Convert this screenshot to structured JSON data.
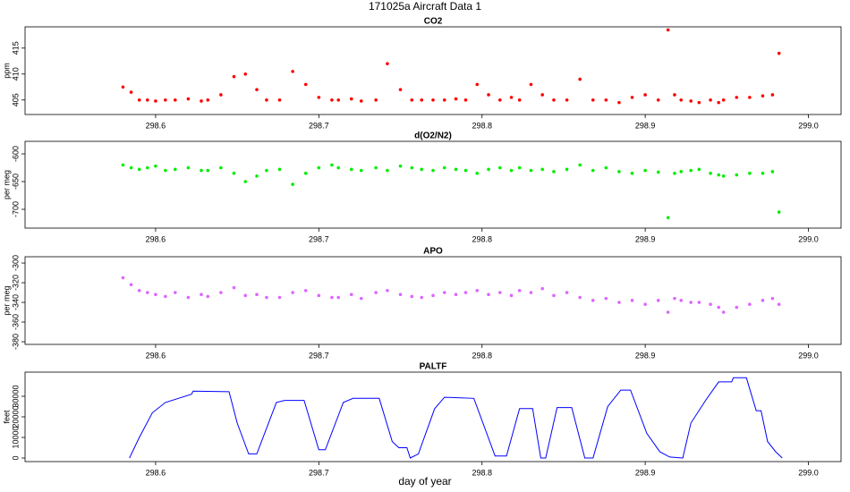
{
  "title": "171025a   Aircraft Data 1",
  "chart_data": [
    {
      "type": "scatter",
      "title": "CO2",
      "y_label": "ppm",
      "color": "#ff0000",
      "x": [
        298.58,
        298.585,
        298.59,
        298.595,
        298.6,
        298.606,
        298.612,
        298.62,
        298.628,
        298.632,
        298.64,
        298.648,
        298.655,
        298.662,
        298.668,
        298.676,
        298.684,
        298.692,
        298.7,
        298.708,
        298.712,
        298.72,
        298.726,
        298.735,
        298.742,
        298.75,
        298.757,
        298.763,
        298.77,
        298.777,
        298.784,
        298.79,
        298.797,
        298.804,
        298.811,
        298.818,
        298.823,
        298.83,
        298.837,
        298.844,
        298.852,
        298.86,
        298.868,
        298.876,
        298.884,
        298.892,
        298.9,
        298.908,
        298.914,
        298.918,
        298.922,
        298.928,
        298.933,
        298.94,
        298.945,
        298.948,
        298.956,
        298.964,
        298.972,
        298.978,
        298.982
      ],
      "values": [
        407.5,
        406.5,
        405,
        405,
        404.8,
        405,
        405,
        405.2,
        404.8,
        405,
        406,
        409.5,
        410,
        407,
        405,
        405,
        410.5,
        408,
        405.5,
        405,
        405,
        405.2,
        404.8,
        405,
        412,
        407,
        405,
        405,
        405,
        405,
        405.2,
        405,
        408,
        406,
        405,
        405.5,
        405,
        408,
        406,
        405,
        405,
        409,
        405,
        405,
        404.5,
        405.5,
        406,
        405,
        418.5,
        406,
        405,
        404.8,
        404.5,
        405,
        404.5,
        405,
        405.5,
        405.5,
        405.8,
        406,
        414
      ],
      "xlim": [
        298.52,
        299.02
      ],
      "ylim": [
        402.2,
        419.1
      ],
      "xticks": [
        298.6,
        298.7,
        298.8,
        298.9,
        {
          "value": 299,
          "label": "299.0"
        }
      ],
      "yticks": [
        405,
        410,
        415
      ]
    },
    {
      "type": "scatter",
      "title": "d(O2/N2)",
      "y_label": "per meg",
      "color": "#00ee00",
      "x": [
        298.58,
        298.585,
        298.59,
        298.595,
        298.6,
        298.606,
        298.612,
        298.62,
        298.628,
        298.632,
        298.64,
        298.648,
        298.655,
        298.662,
        298.668,
        298.676,
        298.684,
        298.692,
        298.7,
        298.708,
        298.712,
        298.72,
        298.726,
        298.735,
        298.742,
        298.75,
        298.757,
        298.763,
        298.77,
        298.777,
        298.784,
        298.79,
        298.797,
        298.804,
        298.811,
        298.818,
        298.823,
        298.83,
        298.837,
        298.844,
        298.852,
        298.86,
        298.868,
        298.876,
        298.884,
        298.892,
        298.9,
        298.908,
        298.914,
        298.918,
        298.922,
        298.928,
        298.933,
        298.94,
        298.945,
        298.948,
        298.956,
        298.964,
        298.972,
        298.978,
        298.982
      ],
      "values": [
        -620,
        -625,
        -628,
        -625,
        -622,
        -630,
        -628,
        -625,
        -630,
        -630,
        -625,
        -635,
        -650,
        -640,
        -630,
        -628,
        -655,
        -635,
        -625,
        -620,
        -625,
        -628,
        -630,
        -625,
        -630,
        -622,
        -625,
        -628,
        -630,
        -625,
        -628,
        -630,
        -635,
        -628,
        -625,
        -630,
        -625,
        -630,
        -628,
        -632,
        -628,
        -620,
        -630,
        -625,
        -632,
        -635,
        -630,
        -633,
        -715,
        -635,
        -632,
        -630,
        -628,
        -635,
        -638,
        -640,
        -638,
        -635,
        -635,
        -632,
        -705
      ],
      "xlim": [
        298.52,
        299.02
      ],
      "ylim": [
        -733.9,
        -577.4
      ],
      "xticks": [
        298.6,
        298.7,
        298.8,
        298.9,
        {
          "value": 299,
          "label": "299.0"
        }
      ],
      "yticks": [
        -600,
        -650,
        -700
      ]
    },
    {
      "type": "scatter",
      "title": "APO",
      "y_label": "per meg",
      "color": "#dd66ff",
      "x": [
        298.58,
        298.585,
        298.59,
        298.595,
        298.6,
        298.606,
        298.612,
        298.62,
        298.628,
        298.632,
        298.64,
        298.648,
        298.655,
        298.662,
        298.668,
        298.676,
        298.684,
        298.692,
        298.7,
        298.708,
        298.712,
        298.72,
        298.726,
        298.735,
        298.742,
        298.75,
        298.757,
        298.763,
        298.77,
        298.777,
        298.784,
        298.79,
        298.797,
        298.804,
        298.811,
        298.818,
        298.823,
        298.83,
        298.837,
        298.844,
        298.852,
        298.86,
        298.868,
        298.876,
        298.884,
        298.892,
        298.9,
        298.908,
        298.914,
        298.918,
        298.922,
        298.928,
        298.933,
        298.94,
        298.945,
        298.948,
        298.956,
        298.964,
        298.972,
        298.978,
        298.982
      ],
      "values": [
        -315,
        -322,
        -328,
        -330,
        -332,
        -334,
        -330,
        -335,
        -332,
        -334,
        -330,
        -325,
        -333,
        -332,
        -335,
        -335,
        -330,
        -328,
        -333,
        -335,
        -335,
        -332,
        -336,
        -330,
        -328,
        -332,
        -334,
        -335,
        -333,
        -330,
        -332,
        -330,
        -328,
        -332,
        -330,
        -333,
        -328,
        -330,
        -326,
        -333,
        -330,
        -335,
        -338,
        -336,
        -340,
        -338,
        -342,
        -338,
        -350,
        -336,
        -338,
        -340,
        -340,
        -342,
        -345,
        -350,
        -345,
        -342,
        -338,
        -336,
        -342
      ],
      "xlim": [
        298.52,
        299.02
      ],
      "ylim": [
        -382.7,
        -293.6
      ],
      "xticks": [
        298.6,
        298.7,
        298.8,
        298.9,
        {
          "value": 299,
          "label": "299.0"
        }
      ],
      "yticks": [
        -300,
        -320,
        -340,
        -360,
        -380
      ]
    },
    {
      "type": "line",
      "title": "PALTF",
      "y_label": "feet",
      "x_label": "day of year",
      "color": "#0000ff",
      "x": [
        298.584,
        298.59,
        298.598,
        298.606,
        298.622,
        298.623,
        298.645,
        298.65,
        298.657,
        298.662,
        298.674,
        298.679,
        298.691,
        298.7,
        298.704,
        298.715,
        298.721,
        298.737,
        298.745,
        298.749,
        298.754,
        298.756,
        298.761,
        298.771,
        298.777,
        298.795,
        298.808,
        298.815,
        298.823,
        298.831,
        298.836,
        298.839,
        298.846,
        298.855,
        298.863,
        298.868,
        298.877,
        298.885,
        298.891,
        298.901,
        298.909,
        298.915,
        298.923,
        298.928,
        298.937,
        298.945,
        298.953,
        298.954,
        298.962,
        298.968,
        298.971,
        298.975,
        298.98,
        298.984
      ],
      "values": [
        0,
        10000,
        22000,
        27000,
        31000,
        32500,
        32200,
        17000,
        2000,
        2000,
        27000,
        28000,
        28000,
        4000,
        4000,
        27000,
        29000,
        29000,
        8000,
        5000,
        5000,
        0,
        2000,
        24000,
        29500,
        29000,
        1000,
        1000,
        24000,
        24000,
        0,
        0,
        24500,
        24500,
        0,
        0,
        25000,
        33000,
        33000,
        12000,
        3000,
        500,
        0,
        17000,
        28000,
        37000,
        37000,
        39000,
        39000,
        23000,
        23000,
        8000,
        3000,
        0
      ],
      "xlim": [
        298.52,
        299.02
      ],
      "ylim": [
        -1739,
        41739
      ],
      "xticks": [
        298.6,
        298.7,
        298.8,
        298.9,
        {
          "value": 299,
          "label": "299.0"
        }
      ],
      "yticks": [
        0,
        10000,
        20000,
        30000
      ]
    }
  ]
}
